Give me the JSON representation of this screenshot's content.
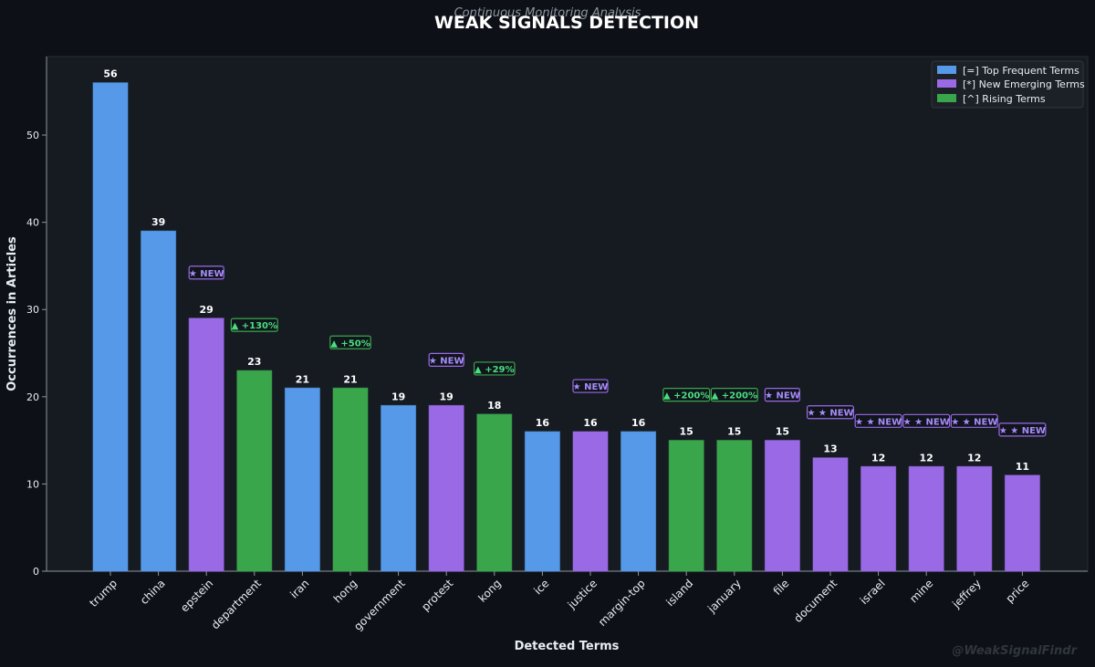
{
  "chart_data": {
    "type": "bar",
    "title": "WEAK SIGNALS DETECTION",
    "subtitle": "Continuous Monitoring Analysis",
    "xlabel": "Detected Terms",
    "ylabel": "Occurrences in Articles",
    "watermark": "@WeakSignalFindr",
    "ylim": [
      0,
      59
    ],
    "yticks": [
      0,
      10,
      20,
      30,
      40,
      50
    ],
    "grid": false,
    "legend_position": "top-right",
    "legend": [
      {
        "key": "frequent",
        "label": "[=] Top Frequent Terms",
        "color": "#5599e8"
      },
      {
        "key": "emerging",
        "label": "[*] New Emerging Terms",
        "color": "#9a6ae6"
      },
      {
        "key": "rising",
        "label": "[^] Rising Terms",
        "color": "#3aa64c"
      }
    ],
    "categories": [
      "trump",
      "china",
      "epstein",
      "department",
      "iran",
      "hong",
      "government",
      "protest",
      "kong",
      "ice",
      "justice",
      "margin-top",
      "island",
      "january",
      "file",
      "document",
      "israel",
      "mine",
      "jeffrey",
      "price"
    ],
    "values": [
      56,
      39,
      29,
      23,
      21,
      21,
      19,
      19,
      18,
      16,
      16,
      16,
      15,
      15,
      15,
      13,
      12,
      12,
      12,
      11
    ],
    "groups": [
      "frequent",
      "frequent",
      "emerging",
      "rising",
      "frequent",
      "rising",
      "frequent",
      "emerging",
      "rising",
      "frequent",
      "emerging",
      "frequent",
      "rising",
      "rising",
      "emerging",
      "emerging",
      "emerging",
      "emerging",
      "emerging",
      "emerging"
    ],
    "annotations": [
      "",
      "",
      "★ NEW",
      "▲ +130%",
      "",
      "▲ +50%",
      "",
      "★ NEW",
      "▲ +29%",
      "",
      "★ NEW",
      "",
      "▲ +200%",
      "▲ +200%",
      "★ NEW",
      "★ ★ NEW",
      "★ ★ NEW",
      "★ ★ NEW",
      "★ ★ NEW",
      "★ ★ NEW"
    ]
  },
  "colors": {
    "background": "#0d1117",
    "plot_background": "#161b22",
    "frequent": "#5599e8",
    "emerging": "#9a6ae6",
    "rising": "#3aa64c",
    "emerging_text": "#a78bfa",
    "rising_text": "#4ade80"
  }
}
